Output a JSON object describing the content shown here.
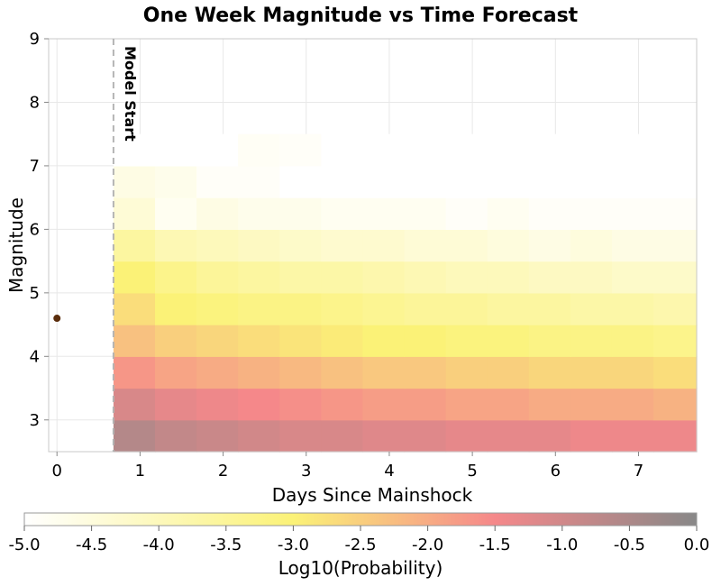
{
  "chart_data": {
    "type": "heatmap",
    "title": "One Week Magnitude vs Time Forecast",
    "xlabel": "Days Since Mainshock",
    "ylabel": "Magnitude",
    "xlim": [
      -0.1,
      7.7
    ],
    "ylim": [
      2.5,
      9.0
    ],
    "xticks": [
      0,
      1,
      2,
      3,
      4,
      5,
      6,
      7
    ],
    "yticks": [
      3,
      4,
      5,
      6,
      7,
      8,
      9
    ],
    "grid": true,
    "annotation": {
      "text": "Model Start",
      "x": 0.68
    },
    "mainshock": {
      "x": 0.0,
      "magnitude": 4.6,
      "color": "#5a2d0c"
    },
    "cells": {
      "x_edges": [
        0.68,
        1.18,
        1.68,
        2.18,
        2.68,
        3.18,
        3.68,
        4.18,
        4.68,
        5.18,
        5.68,
        6.18,
        6.68,
        7.18,
        7.7
      ],
      "mag_edges": [
        2.5,
        3.0,
        3.5,
        4.0,
        4.5,
        5.0,
        5.5,
        6.0,
        6.5,
        7.0,
        7.5
      ],
      "log10_probability": [
        [
          -0.6,
          -0.8,
          -0.9,
          -1.0,
          -1.1,
          -1.1,
          -1.2,
          -1.2,
          -1.3,
          -1.3,
          -1.3,
          -1.4,
          -1.4,
          -1.4
        ],
        [
          -1.1,
          -1.3,
          -1.4,
          -1.5,
          -1.6,
          -1.7,
          -1.8,
          -1.8,
          -1.9,
          -1.9,
          -2.0,
          -2.0,
          -2.0,
          -2.1
        ],
        [
          -1.7,
          -1.9,
          -2.0,
          -2.1,
          -2.2,
          -2.3,
          -2.4,
          -2.4,
          -2.5,
          -2.5,
          -2.6,
          -2.6,
          -2.6,
          -2.7
        ],
        [
          -2.3,
          -2.5,
          -2.6,
          -2.7,
          -2.8,
          -2.9,
          -3.0,
          -3.0,
          -3.1,
          -3.1,
          -3.2,
          -3.2,
          -3.2,
          -3.3
        ],
        [
          -2.7,
          -3.0,
          -3.1,
          -3.2,
          -3.2,
          -3.3,
          -3.4,
          -3.5,
          -3.5,
          -3.6,
          -3.6,
          -3.7,
          -3.7,
          -3.8
        ],
        [
          -3.0,
          -3.3,
          -3.5,
          -3.6,
          -3.7,
          -3.7,
          -3.8,
          -3.9,
          -4.0,
          -4.0,
          -4.1,
          -4.1,
          -4.2,
          -4.2
        ],
        [
          -3.6,
          -3.9,
          -4.0,
          -4.1,
          -4.2,
          -4.3,
          -4.3,
          -4.4,
          -4.4,
          -4.5,
          -4.6,
          -4.5,
          -4.6,
          -4.6
        ],
        [
          -4.4,
          -4.8,
          -4.6,
          -4.7,
          -4.7,
          -4.8,
          -4.8,
          -4.8,
          -4.9,
          -4.8,
          -4.9,
          -4.9,
          -4.9,
          -4.9
        ],
        [
          -4.6,
          -4.7,
          -4.9,
          -4.9,
          -5.0,
          -5.0,
          -5.0,
          -5.0,
          -5.0,
          -5.0,
          -5.0,
          -5.0,
          -5.0,
          -5.0
        ],
        [
          -5.0,
          -5.0,
          -5.0,
          -4.85,
          -4.9,
          -5.0,
          -5.0,
          -5.0,
          -5.0,
          -5.0,
          -5.0,
          -5.0,
          -5.0,
          -5.0
        ]
      ]
    },
    "colorbar": {
      "label": "Log10(Probability)",
      "range": [
        -5.0,
        0.0
      ],
      "ticks": [
        "-5.0",
        "-4.5",
        "-4.0",
        "-3.5",
        "-3.0",
        "-2.5",
        "-2.0",
        "-1.5",
        "-1.0",
        "-0.5",
        "0.0"
      ],
      "tick_values": [
        -5.0,
        -4.5,
        -4.0,
        -3.5,
        -3.0,
        -2.5,
        -2.0,
        -1.5,
        -1.0,
        -0.5,
        0.0
      ],
      "stops": [
        {
          "value": -5.0,
          "color": "#ffffff"
        },
        {
          "value": -3.0,
          "color": "#fbf277"
        },
        {
          "value": -1.5,
          "color": "#f5888a"
        },
        {
          "value": 0.0,
          "color": "#888888"
        }
      ]
    }
  }
}
